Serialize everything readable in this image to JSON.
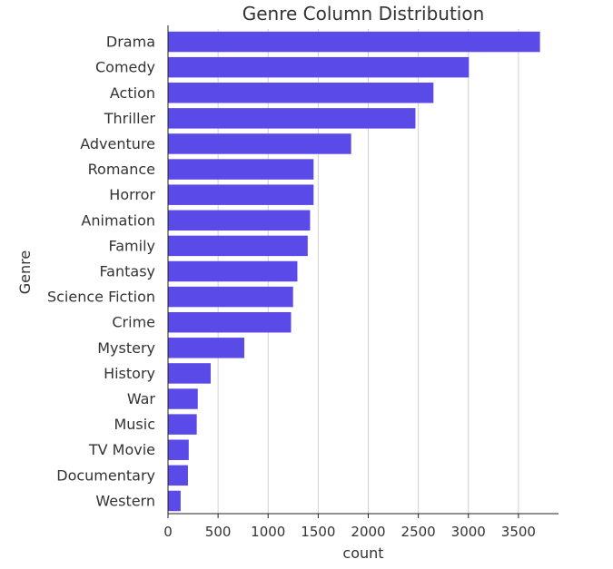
{
  "chart_data": {
    "type": "bar",
    "orientation": "horizontal",
    "title": "Genre Column Distribution",
    "xlabel": "count",
    "ylabel": "Genre",
    "categories": [
      "Drama",
      "Comedy",
      "Action",
      "Thriller",
      "Adventure",
      "Romance",
      "Horror",
      "Animation",
      "Family",
      "Fantasy",
      "Science Fiction",
      "Crime",
      "Mystery",
      "History",
      "War",
      "Music",
      "TV Movie",
      "Documentary",
      "Western"
    ],
    "values": [
      3715,
      3005,
      2651,
      2471,
      1829,
      1454,
      1454,
      1419,
      1395,
      1292,
      1249,
      1229,
      762,
      426,
      297,
      287,
      207,
      199,
      126
    ],
    "xticks": [
      0,
      500,
      1000,
      1500,
      2000,
      2500,
      3000,
      3500
    ],
    "xlim": [
      0,
      3900
    ],
    "grid": "vertical",
    "bar_color": "#5a4ae8",
    "grid_color": "#d0d0d0",
    "spine_color": "#222222"
  }
}
